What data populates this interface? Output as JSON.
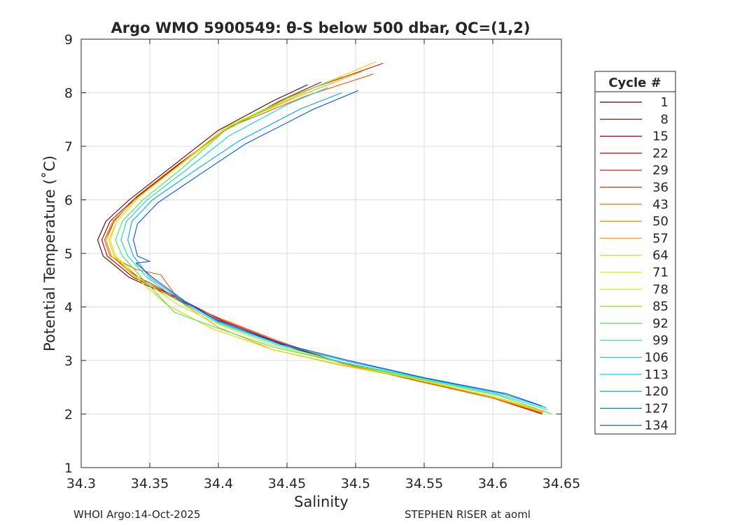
{
  "chart_data": {
    "type": "line",
    "title": "Argo WMO 5900549: θ-S below 500 dbar,  QC=(1,2)",
    "xlabel": "Salinity",
    "ylabel": "Potential Temperature (˚C)",
    "xlim": [
      34.3,
      34.65
    ],
    "ylim": [
      1,
      9
    ],
    "xticks": [
      34.3,
      34.35,
      34.4,
      34.45,
      34.5,
      34.55,
      34.6,
      34.65
    ],
    "xtick_labels": [
      "34.3",
      "34.35",
      "34.4",
      "34.45",
      "34.5",
      "34.55",
      "34.6",
      "34.65"
    ],
    "yticks": [
      1,
      2,
      3,
      4,
      5,
      6,
      7,
      8,
      9
    ],
    "ytick_labels": [
      "1",
      "2",
      "3",
      "4",
      "5",
      "6",
      "7",
      "8",
      "9"
    ],
    "grid": true,
    "legend": {
      "title": "Cycle #",
      "placement": "outside-right",
      "entries": [
        {
          "label": "1",
          "color": "#5a0000"
        },
        {
          "label": "8",
          "color": "#7a0000"
        },
        {
          "label": "15",
          "color": "#9c0000"
        },
        {
          "label": "22",
          "color": "#bf0000"
        },
        {
          "label": "29",
          "color": "#d60e00"
        },
        {
          "label": "36",
          "color": "#e63000"
        },
        {
          "label": "43",
          "color": "#ee5a00"
        },
        {
          "label": "50",
          "color": "#f48000"
        },
        {
          "label": "57",
          "color": "#f8a600"
        },
        {
          "label": "64",
          "color": "#f8cc00"
        },
        {
          "label": "71",
          "color": "#e8ee00"
        },
        {
          "label": "78",
          "color": "#bdf000"
        },
        {
          "label": "85",
          "color": "#86ee00"
        },
        {
          "label": "92",
          "color": "#48e840"
        },
        {
          "label": "99",
          "color": "#1ee08a"
        },
        {
          "label": "106",
          "color": "#10d8c4"
        },
        {
          "label": "113",
          "color": "#00c8e8"
        },
        {
          "label": "120",
          "color": "#00a8f0"
        },
        {
          "label": "127",
          "color": "#0080f0"
        },
        {
          "label": "134",
          "color": "#0050f0"
        }
      ]
    },
    "series": [
      {
        "label": "1",
        "x": [
          34.465,
          34.44,
          34.4,
          34.365,
          34.335,
          34.318,
          34.312,
          34.316,
          34.335,
          34.37,
          34.4,
          34.44,
          34.49,
          34.545,
          34.6,
          34.636
        ],
        "y": [
          8.15,
          7.85,
          7.3,
          6.6,
          6.0,
          5.6,
          5.25,
          4.95,
          4.55,
          4.15,
          3.75,
          3.35,
          2.95,
          2.62,
          2.3,
          2.0
        ]
      },
      {
        "label": "15",
        "x": [
          34.475,
          34.445,
          34.405,
          34.368,
          34.338,
          34.321,
          34.315,
          34.319,
          34.338,
          34.372,
          34.402,
          34.442,
          34.49,
          34.545,
          34.6,
          34.636
        ],
        "y": [
          8.2,
          7.85,
          7.3,
          6.6,
          6.0,
          5.6,
          5.25,
          4.95,
          4.55,
          4.15,
          3.75,
          3.36,
          2.95,
          2.62,
          2.3,
          2.0
        ]
      },
      {
        "label": "29",
        "x": [
          34.52,
          34.47,
          34.41,
          34.37,
          34.34,
          34.324,
          34.318,
          34.322,
          34.34,
          34.372,
          34.402,
          34.442,
          34.49,
          34.545,
          34.6,
          34.636
        ],
        "y": [
          8.55,
          8.1,
          7.4,
          6.65,
          6.05,
          5.6,
          5.25,
          4.95,
          4.58,
          4.15,
          3.76,
          3.36,
          2.95,
          2.62,
          2.3,
          2.0
        ]
      },
      {
        "label": "43",
        "x": [
          34.513,
          34.465,
          34.407,
          34.369,
          34.339,
          34.323,
          34.317,
          34.321,
          34.34,
          34.358,
          34.372,
          34.4,
          34.442,
          34.49,
          34.545,
          34.6,
          34.636
        ],
        "y": [
          8.35,
          7.95,
          7.35,
          6.6,
          6.0,
          5.6,
          5.25,
          4.95,
          4.7,
          4.6,
          4.1,
          3.8,
          3.38,
          2.95,
          2.62,
          2.3,
          2.02
        ]
      },
      {
        "label": "57",
        "x": [
          34.505,
          34.46,
          34.405,
          34.369,
          34.339,
          34.323,
          34.318,
          34.322,
          34.34,
          34.372,
          34.4,
          34.44,
          34.488,
          34.545,
          34.6,
          34.637
        ],
        "y": [
          8.4,
          7.95,
          7.35,
          6.6,
          6.0,
          5.6,
          5.25,
          4.95,
          4.55,
          4.1,
          3.62,
          3.2,
          2.92,
          2.64,
          2.31,
          2.03
        ]
      },
      {
        "label": "64",
        "x": [
          34.515,
          34.47,
          34.41,
          34.372,
          34.342,
          34.326,
          34.32,
          34.324,
          34.34,
          34.362,
          34.395,
          34.44,
          34.49,
          34.548,
          34.6,
          34.637
        ],
        "y": [
          8.58,
          8.1,
          7.4,
          6.65,
          6.05,
          5.6,
          5.25,
          4.95,
          4.55,
          4.05,
          3.6,
          3.2,
          2.92,
          2.64,
          2.32,
          2.04
        ]
      },
      {
        "label": "78",
        "x": [
          34.49,
          34.455,
          34.405,
          34.372,
          34.342,
          34.326,
          34.321,
          34.325,
          34.342,
          34.37,
          34.4,
          34.44,
          34.49,
          34.545,
          34.6,
          34.638
        ],
        "y": [
          8.3,
          7.95,
          7.35,
          6.65,
          6.05,
          5.6,
          5.25,
          4.95,
          4.55,
          4.05,
          3.68,
          3.28,
          2.96,
          2.64,
          2.33,
          2.05
        ]
      },
      {
        "label": "92",
        "x": [
          34.48,
          34.45,
          34.405,
          34.374,
          34.345,
          34.33,
          34.325,
          34.33,
          34.345,
          34.368,
          34.4,
          34.44,
          34.49,
          34.548,
          34.605,
          34.643
        ],
        "y": [
          8.2,
          7.9,
          7.3,
          6.6,
          6.0,
          5.6,
          5.25,
          4.95,
          4.52,
          3.9,
          3.6,
          3.25,
          2.96,
          2.65,
          2.34,
          2.0
        ]
      },
      {
        "label": "106",
        "x": [
          34.48,
          34.452,
          34.408,
          34.376,
          34.348,
          34.333,
          34.329,
          34.334,
          34.348,
          34.372,
          34.4,
          34.442,
          34.49,
          34.55,
          34.605,
          34.64
        ],
        "y": [
          8.1,
          7.8,
          7.2,
          6.55,
          6.0,
          5.6,
          5.25,
          4.95,
          4.55,
          4.1,
          3.7,
          3.3,
          2.97,
          2.66,
          2.36,
          2.08
        ]
      },
      {
        "label": "120",
        "x": [
          34.49,
          34.46,
          34.415,
          34.38,
          34.352,
          34.337,
          34.334,
          34.338,
          34.35,
          34.375,
          34.4,
          34.445,
          34.495,
          34.55,
          34.608,
          34.639
        ],
        "y": [
          8.0,
          7.7,
          7.1,
          6.5,
          6.0,
          5.6,
          5.25,
          4.95,
          4.55,
          4.1,
          3.72,
          3.3,
          2.98,
          2.67,
          2.37,
          2.12
        ]
      },
      {
        "label": "134",
        "x": [
          34.502,
          34.47,
          34.42,
          34.385,
          34.356,
          34.341,
          34.338,
          34.341,
          34.35,
          34.34,
          34.352,
          34.376,
          34.4,
          34.445,
          34.495,
          34.55,
          34.61,
          34.636
        ],
        "y": [
          8.04,
          7.7,
          7.05,
          6.45,
          5.95,
          5.55,
          5.25,
          4.95,
          4.85,
          4.82,
          4.55,
          4.1,
          3.74,
          3.32,
          3.0,
          2.68,
          2.38,
          2.15
        ]
      }
    ],
    "footer_left": "WHOI Argo:14-Oct-2025",
    "footer_right": "STEPHEN RISER at aoml"
  }
}
